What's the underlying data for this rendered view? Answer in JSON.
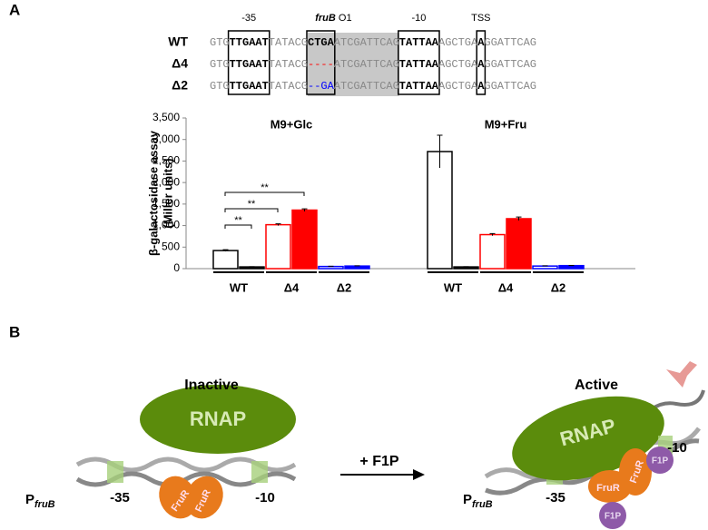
{
  "panel_labels": [
    "A",
    "B"
  ],
  "sequence": {
    "box_labels": [
      "-35",
      "fruB",
      "O1",
      "-10",
      "TSS"
    ],
    "rows": [
      {
        "label": "WT",
        "segments": [
          "GTG",
          "TTGAAT",
          "TATACG",
          "CTGA",
          "ATCGATTCAG",
          "TATTAA",
          "AGCTGA",
          "A",
          "GGATTCAG"
        ]
      },
      {
        "label": "Δ4",
        "segments": [
          "GTG",
          "TTGAAT",
          "TATACG",
          "----",
          "ATCGATTCAG",
          "TATTAA",
          "AGCTGA",
          "A",
          "GGATTCAG"
        ]
      },
      {
        "label": "Δ2",
        "segments": [
          "GTG",
          "TTGAAT",
          "TATACG",
          "--GA",
          "ATCGATTCAG",
          "TATTAA",
          "AGCTGA",
          "A",
          "GGATTCAG"
        ]
      }
    ]
  },
  "chart_data": {
    "type": "bar",
    "ylabel": [
      "β-galactosidase assay",
      "(Miller units)"
    ],
    "ylim": [
      0,
      3500
    ],
    "yticks": [
      0,
      500,
      {
        "value": 1000,
        "label": "1,000"
      },
      {
        "value": 1500,
        "label": "1,500"
      },
      {
        "value": 2000,
        "label": "2,000"
      },
      {
        "value": 2500,
        "label": "2,500"
      },
      {
        "value": 3000,
        "label": "3,000"
      },
      {
        "value": 3500,
        "label": "3,500"
      }
    ],
    "colors": [
      "#000000",
      "#ff0000",
      "#0000ff"
    ],
    "panels": [
      {
        "title": "M9+Glc",
        "categories": [
          "WT",
          "Δ4",
          "Δ2"
        ],
        "series": [
          {
            "filled": false,
            "values": [
              420,
              1020,
              50
            ],
            "errors": [
              20,
              20,
              5
            ]
          },
          {
            "filled": true,
            "values": [
              40,
              1360,
              60
            ],
            "errors": [
              5,
              30,
              5
            ]
          }
        ],
        "annotations": [
          "**",
          "**",
          "**"
        ]
      },
      {
        "title": "M9+Fru",
        "categories": [
          "WT",
          "Δ4",
          "Δ2"
        ],
        "series": [
          {
            "filled": false,
            "values": [
              2720,
              790,
              60
            ],
            "errors": [
              380,
              25,
              5
            ]
          },
          {
            "filled": true,
            "values": [
              40,
              1160,
              70
            ],
            "errors": [
              5,
              40,
              5
            ]
          }
        ],
        "annotations": []
      }
    ]
  },
  "panel_b": {
    "inactive": {
      "title": "Inactive",
      "rnap": "RNAP",
      "fruR": [
        "FruR",
        "FruR"
      ],
      "minus35": "-35",
      "minus10": "-10",
      "promoter": "P",
      "promoter_sub": "fruB"
    },
    "arrow_label": "+ F1P",
    "active": {
      "title": "Active",
      "rnap": "RNAP",
      "fruR": [
        "FruR",
        "FruR"
      ],
      "f1p": [
        "F1P",
        "F1P"
      ],
      "minus35": "-35",
      "minus10": "-10",
      "promoter": "P",
      "promoter_sub": "fruB"
    }
  }
}
